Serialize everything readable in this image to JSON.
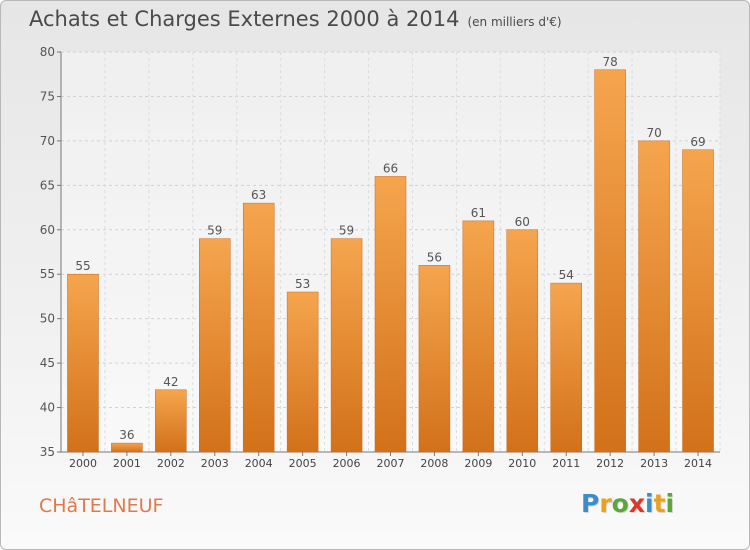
{
  "header": {
    "title": "Achats et Charges Externes 2000 à 2014",
    "subtitle": "(en milliers d'€)"
  },
  "footer": {
    "commune": "CHâTELNEUF",
    "logo_letters": [
      "P",
      "r",
      "o",
      "x",
      "i",
      "t",
      "i"
    ],
    "logo_colors": [
      "#3a8ec8",
      "#e8a21e",
      "#5aa83c",
      "#d9382c",
      "#3a8ec8",
      "#e8a21e",
      "#5aa83c"
    ]
  },
  "chart_data": {
    "type": "bar",
    "title": "Achats et Charges Externes 2000 à 2014",
    "subtitle": "(en milliers d'€)",
    "categories": [
      "2000",
      "2001",
      "2002",
      "2003",
      "2004",
      "2005",
      "2006",
      "2007",
      "2008",
      "2009",
      "2010",
      "2011",
      "2012",
      "2013",
      "2014"
    ],
    "values": [
      55,
      36,
      42,
      59,
      63,
      53,
      59,
      66,
      56,
      61,
      60,
      54,
      78,
      70,
      69
    ],
    "ylim": [
      35,
      80
    ],
    "yticks": [
      35,
      40,
      45,
      50,
      55,
      60,
      65,
      70,
      75,
      80
    ],
    "grid": true,
    "bar_color_top": "#f5a54e",
    "bar_color_bottom": "#d2711a"
  }
}
